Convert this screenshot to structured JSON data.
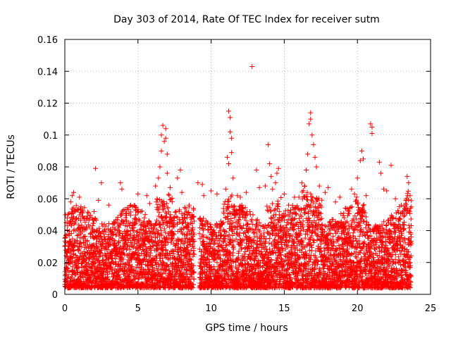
{
  "chart_data": {
    "type": "scatter",
    "title": "Day 303 of 2014, Rate Of TEC Index for receiver sutm",
    "xlabel": "GPS time / hours",
    "ylabel": "ROTI / TECUs",
    "xlim": [
      0,
      25
    ],
    "ylim": [
      0,
      0.16
    ],
    "x_ticks": [
      "0",
      "5",
      "10",
      "15",
      "20",
      "25"
    ],
    "y_ticks": [
      "0",
      "0.02",
      "0.04",
      "0.06",
      "0.08",
      "0.1",
      "0.12",
      "0.14",
      "0.16"
    ],
    "grid": true,
    "marker": "+",
    "color": "#ff0000",
    "series": [
      {
        "points": [
          [
            0.2,
            0.045
          ],
          [
            0.4,
            0.058
          ],
          [
            0.5,
            0.062
          ],
          [
            0.6,
            0.064
          ],
          [
            1.0,
            0.061
          ],
          [
            1.1,
            0.055
          ],
          [
            2.0,
            0.052
          ],
          [
            2.1,
            0.079
          ],
          [
            2.3,
            0.059
          ],
          [
            2.5,
            0.07
          ],
          [
            3.0,
            0.056
          ],
          [
            3.8,
            0.07
          ],
          [
            3.9,
            0.066
          ],
          [
            4.5,
            0.056
          ],
          [
            5.0,
            0.063
          ],
          [
            5.6,
            0.062
          ],
          [
            5.8,
            0.057
          ],
          [
            6.2,
            0.068
          ],
          [
            6.4,
            0.073
          ],
          [
            6.5,
            0.08
          ],
          [
            6.6,
            0.09
          ],
          [
            6.6,
            0.1
          ],
          [
            6.7,
            0.106
          ],
          [
            6.8,
            0.096
          ],
          [
            6.9,
            0.104
          ],
          [
            6.9,
            0.098
          ],
          [
            7.0,
            0.088
          ],
          [
            7.0,
            0.076
          ],
          [
            7.2,
            0.067
          ],
          [
            7.7,
            0.073
          ],
          [
            7.9,
            0.078
          ],
          [
            8.0,
            0.064
          ],
          [
            8.5,
            0.056
          ],
          [
            8.8,
            0.053
          ],
          [
            9.1,
            0.07
          ],
          [
            9.4,
            0.069
          ],
          [
            9.5,
            0.062
          ],
          [
            10.0,
            0.065
          ],
          [
            10.4,
            0.063
          ],
          [
            11.0,
            0.066
          ],
          [
            11.1,
            0.086
          ],
          [
            11.2,
            0.115
          ],
          [
            11.3,
            0.111
          ],
          [
            11.3,
            0.102
          ],
          [
            11.4,
            0.098
          ],
          [
            11.4,
            0.089
          ],
          [
            11.2,
            0.082
          ],
          [
            11.5,
            0.073
          ],
          [
            11.8,
            0.062
          ],
          [
            12.0,
            0.061
          ],
          [
            12.1,
            0.056
          ],
          [
            12.4,
            0.064
          ],
          [
            12.8,
            0.143
          ],
          [
            13.1,
            0.078
          ],
          [
            13.3,
            0.067
          ],
          [
            13.7,
            0.068
          ],
          [
            13.9,
            0.094
          ],
          [
            14.0,
            0.082
          ],
          [
            14.1,
            0.074
          ],
          [
            14.2,
            0.066
          ],
          [
            14.4,
            0.07
          ],
          [
            14.5,
            0.076
          ],
          [
            14.6,
            0.079
          ],
          [
            15.0,
            0.063
          ],
          [
            15.3,
            0.056
          ],
          [
            15.7,
            0.061
          ],
          [
            16.0,
            0.061
          ],
          [
            16.4,
            0.068
          ],
          [
            16.5,
            0.078
          ],
          [
            16.6,
            0.088
          ],
          [
            16.7,
            0.107
          ],
          [
            16.8,
            0.114
          ],
          [
            16.8,
            0.11
          ],
          [
            16.9,
            0.1
          ],
          [
            17.0,
            0.094
          ],
          [
            17.1,
            0.086
          ],
          [
            17.2,
            0.08
          ],
          [
            17.4,
            0.068
          ],
          [
            17.8,
            0.064
          ],
          [
            18.0,
            0.067
          ],
          [
            18.5,
            0.058
          ],
          [
            18.8,
            0.061
          ],
          [
            19.2,
            0.054
          ],
          [
            19.6,
            0.066
          ],
          [
            19.8,
            0.063
          ],
          [
            20.0,
            0.073
          ],
          [
            20.2,
            0.084
          ],
          [
            20.3,
            0.09
          ],
          [
            20.4,
            0.085
          ],
          [
            20.6,
            0.062
          ],
          [
            20.9,
            0.107
          ],
          [
            21.0,
            0.105
          ],
          [
            21.0,
            0.101
          ],
          [
            21.5,
            0.083
          ],
          [
            21.6,
            0.076
          ],
          [
            21.8,
            0.066
          ],
          [
            22.0,
            0.065
          ],
          [
            22.3,
            0.081
          ],
          [
            22.6,
            0.06
          ],
          [
            23.0,
            0.056
          ],
          [
            23.4,
            0.074
          ],
          [
            23.5,
            0.07
          ],
          [
            23.6,
            0.062
          ]
        ]
      }
    ]
  }
}
